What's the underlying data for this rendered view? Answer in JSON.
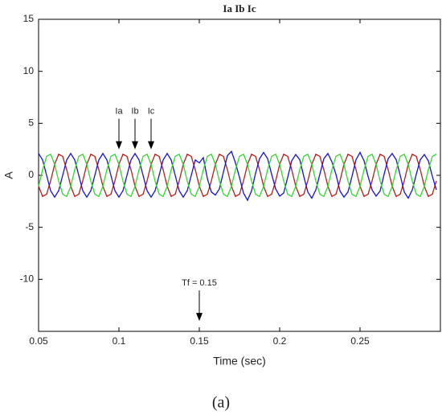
{
  "chart_data": {
    "type": "line",
    "title": "Ia Ib Ic",
    "x_label": "Time (sec)",
    "y_label": "A",
    "caption": "(a)",
    "x": [
      0.05,
      0.0525,
      0.055,
      0.0575,
      0.06,
      0.0625,
      0.065,
      0.0675,
      0.07,
      0.0725,
      0.075,
      0.0775,
      0.08,
      0.0825,
      0.085,
      0.0875,
      0.09,
      0.0925,
      0.095,
      0.0975,
      0.1,
      0.1025,
      0.105,
      0.1075,
      0.11,
      0.1125,
      0.115,
      0.1175,
      0.12,
      0.1225,
      0.125,
      0.1275,
      0.13,
      0.1325,
      0.135,
      0.1375,
      0.14,
      0.1425,
      0.145,
      0.1475,
      0.15,
      0.1525,
      0.155,
      0.1575,
      0.16,
      0.1625,
      0.165,
      0.1675,
      0.17,
      0.1725,
      0.175,
      0.1775,
      0.18,
      0.1825,
      0.185,
      0.1875,
      0.19,
      0.1925,
      0.195,
      0.1975,
      0.2,
      0.2025,
      0.205,
      0.2075,
      0.21,
      0.2125,
      0.215,
      0.2175,
      0.22,
      0.2225,
      0.225,
      0.2275,
      0.23,
      0.2325,
      0.235,
      0.2375,
      0.24,
      0.2425,
      0.245,
      0.2475,
      0.25,
      0.2525,
      0.255,
      0.2575,
      0.26,
      0.2625,
      0.265,
      0.2675,
      0.27,
      0.2725,
      0.275,
      0.2775,
      0.28,
      0.2825,
      0.285,
      0.2875,
      0.29,
      0.2925,
      0.295,
      0.2975
    ],
    "series": [
      {
        "name": "Ia",
        "color": "#b01e1e",
        "values": [
          -1.05,
          -2.03,
          -1.82,
          -0.54,
          1.05,
          2.03,
          1.82,
          0.54,
          -1.05,
          -2.03,
          -1.82,
          -0.54,
          1.05,
          2.03,
          1.82,
          0.54,
          -1.05,
          -2.03,
          -1.82,
          -0.54,
          1.05,
          2.03,
          1.82,
          0.54,
          -1.05,
          -2.03,
          -1.82,
          -0.54,
          1.05,
          2.03,
          1.82,
          0.54,
          -1.05,
          -2.03,
          -1.82,
          -0.54,
          1.05,
          2.03,
          1.82,
          0.54,
          -1.05,
          -2.03,
          -1.82,
          -0.54,
          1.05,
          2.03,
          1.82,
          0.54,
          -1.05,
          -2.03,
          -1.82,
          -0.54,
          1.05,
          2.03,
          1.82,
          0.54,
          -1.05,
          -2.03,
          -1.82,
          -0.54,
          1.05,
          2.03,
          1.82,
          0.54,
          -1.05,
          -2.03,
          -1.82,
          -0.54,
          1.05,
          2.03,
          1.82,
          0.54,
          -1.05,
          -2.03,
          -1.82,
          -0.54,
          1.05,
          2.03,
          1.82,
          0.54,
          -1.05,
          -2.03,
          -1.82,
          -0.54,
          1.05,
          2.03,
          1.82,
          0.54,
          -1.05,
          -2.03,
          -1.82,
          -0.54,
          1.05,
          2.03,
          1.82,
          0.54,
          -1.05,
          -2.03,
          -1.82,
          -0.54
        ]
      },
      {
        "name": "Ib",
        "color": "#1414c8",
        "values": [
          2.1,
          1.48,
          0,
          -1.48,
          -2.1,
          -1.48,
          0,
          1.48,
          2.1,
          1.48,
          0,
          -1.48,
          -2.1,
          -1.48,
          0,
          1.48,
          2.1,
          1.48,
          0,
          -1.48,
          -2.1,
          -1.48,
          0,
          1.48,
          2.1,
          1.48,
          0,
          -1.48,
          -2.1,
          -1.48,
          0,
          1.48,
          2.1,
          1.48,
          0,
          -1.48,
          -2.1,
          -1.48,
          0,
          1.48,
          1.2,
          1.7,
          -0.3,
          -1.6,
          -1.9,
          -1.3,
          0.3,
          1.9,
          2.3,
          1.2,
          -0.2,
          -1.7,
          -2.4,
          -1.5,
          0.2,
          1.6,
          2.2,
          1.6,
          0.1,
          -1.3,
          -2.0,
          -1.7,
          -0.2,
          1.4,
          2.0,
          1.5,
          -0.1,
          -1.6,
          -2.2,
          -1.4,
          0.1,
          1.6,
          2.1,
          1.3,
          0.1,
          -1.5,
          -2.1,
          -1.6,
          -0.1,
          1.5,
          2.2,
          1.4,
          -0.1,
          -1.4,
          -2.0,
          -1.5,
          0.1,
          1.6,
          2.1,
          1.5,
          0.0,
          -1.6,
          -2.2,
          -1.4,
          0.1,
          1.5,
          2.0,
          1.4,
          -0.1,
          -1.4
        ]
      },
      {
        "name": "Ic",
        "color": "#2edc2e",
        "values": [
          -1.05,
          0.54,
          1.82,
          2.03,
          1.05,
          -0.54,
          -1.82,
          -2.03,
          -1.05,
          0.54,
          1.82,
          2.03,
          1.05,
          -0.54,
          -1.82,
          -2.03,
          -1.05,
          0.54,
          1.82,
          2.03,
          1.05,
          -0.54,
          -1.82,
          -2.03,
          -1.05,
          0.54,
          1.82,
          2.03,
          1.05,
          -0.54,
          -1.82,
          -2.03,
          -1.05,
          0.54,
          1.82,
          2.03,
          1.05,
          -0.54,
          -1.82,
          -2.03,
          -1.05,
          0.54,
          1.82,
          2.03,
          1.05,
          -0.54,
          -1.82,
          -2.03,
          -1.05,
          0.54,
          1.82,
          2.03,
          1.05,
          -0.54,
          -1.82,
          -2.03,
          -1.05,
          0.54,
          1.82,
          2.03,
          1.05,
          -0.54,
          -1.82,
          -2.03,
          -1.05,
          0.54,
          1.82,
          2.03,
          1.05,
          -0.54,
          -1.82,
          -2.03,
          -1.05,
          0.54,
          1.82,
          2.03,
          1.05,
          -0.54,
          -1.82,
          -2.03,
          -1.05,
          0.54,
          1.82,
          2.03,
          1.05,
          -0.54,
          -1.82,
          -2.03,
          -1.05,
          0.54,
          1.82,
          2.03,
          1.05,
          -0.54,
          -1.82,
          -2.03,
          -1.05,
          0.54,
          1.82,
          2.03
        ]
      }
    ],
    "annotations": [
      {
        "text": "Ia",
        "x": 0.1,
        "y": 2.5
      },
      {
        "text": "Ib",
        "x": 0.11,
        "y": 2.5
      },
      {
        "text": "Ic",
        "x": 0.12,
        "y": 2.5
      },
      {
        "text": "Tf = 0.15",
        "x": 0.15,
        "y": -14
      }
    ],
    "xlim": [
      0.05,
      0.3
    ],
    "xticks": [
      0.05,
      0.1,
      0.15,
      0.2,
      0.25
    ],
    "ylim": [
      -15,
      15
    ],
    "yticks": [
      -10,
      -5,
      0,
      5,
      10,
      15
    ]
  }
}
